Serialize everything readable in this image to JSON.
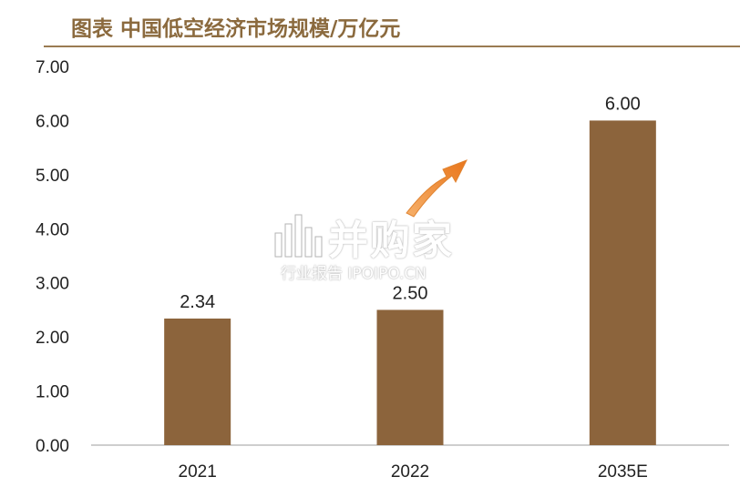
{
  "title": "图表  中国低空经济市场规模/万亿元",
  "watermark": {
    "brand": "并购家",
    "subtitle": "行业报告 IPOIPO.CN"
  },
  "colors": {
    "bar": "#8C643C",
    "title": "#8B6A3E",
    "arrow": "#F08A2E"
  },
  "chart_data": {
    "type": "bar",
    "categories": [
      "2021",
      "2022",
      "2035E"
    ],
    "values": [
      2.34,
      2.5,
      6.0
    ],
    "data_labels": [
      "2.34",
      "2.50",
      "6.00"
    ],
    "yticks": [
      "0.00",
      "1.00",
      "2.00",
      "3.00",
      "4.00",
      "5.00",
      "6.00",
      "7.00"
    ],
    "ylim": [
      0,
      7
    ],
    "grid": false,
    "legend": "none",
    "annotations": [
      "orange upward arrow between 2022 and 2035E"
    ]
  }
}
